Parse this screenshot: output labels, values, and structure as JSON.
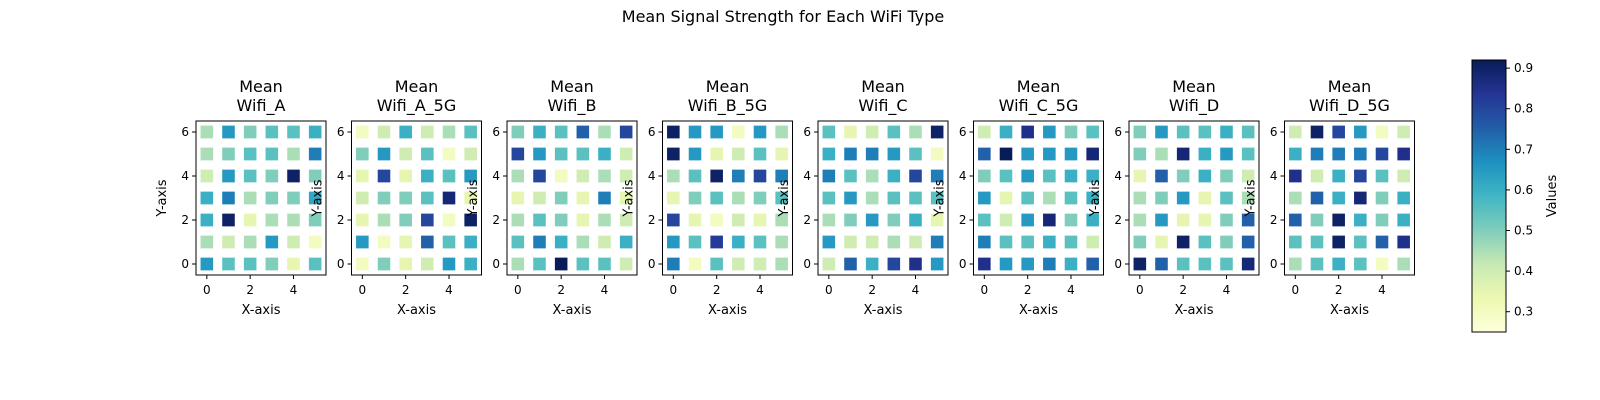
{
  "figure": {
    "suptitle": "Mean Signal Strength for Each WiFi Type",
    "colorbar_label": "Values",
    "colormap": "YlGnBu",
    "colormap_stops": [
      "#ffffd9",
      "#edf8b1",
      "#c7e9b4",
      "#7fcdbb",
      "#41b6c4",
      "#1d91c0",
      "#225ea8",
      "#253494",
      "#081d58"
    ]
  },
  "chart_data": [
    {
      "type": "heatmap",
      "title": "Mean\nWifi_A",
      "xlabel": "X-axis",
      "ylabel": "Y-axis",
      "x": [
        0,
        1,
        2,
        3,
        4,
        5
      ],
      "y": [
        0,
        1,
        2,
        3,
        4,
        5,
        6
      ],
      "xticks": [
        0,
        2,
        4
      ],
      "yticks": [
        0,
        2,
        4,
        6
      ],
      "zlim": [
        0.25,
        0.92
      ],
      "z": [
        [
          0.65,
          0.55,
          0.55,
          0.5,
          0.35,
          0.55
        ],
        [
          0.45,
          0.4,
          0.45,
          0.65,
          0.4,
          0.3
        ],
        [
          0.6,
          0.9,
          0.35,
          0.45,
          0.45,
          0.5
        ],
        [
          0.6,
          0.7,
          0.45,
          0.5,
          0.5,
          0.62
        ],
        [
          0.4,
          0.65,
          0.55,
          0.5,
          0.9,
          0.5
        ],
        [
          0.45,
          0.5,
          0.55,
          0.55,
          0.45,
          0.7
        ],
        [
          0.45,
          0.65,
          0.5,
          0.55,
          0.55,
          0.6
        ]
      ]
    },
    {
      "type": "heatmap",
      "title": "Mean\nWifi_A_5G",
      "xlabel": "X-axis",
      "ylabel": "Y-axis",
      "x": [
        0,
        1,
        2,
        3,
        4,
        5
      ],
      "y": [
        0,
        1,
        2,
        3,
        4,
        5,
        6
      ],
      "xticks": [
        0,
        2,
        4
      ],
      "yticks": [
        0,
        2,
        4,
        6
      ],
      "zlim": [
        0.25,
        0.92
      ],
      "z": [
        [
          0.3,
          0.5,
          0.35,
          0.4,
          0.65,
          0.6
        ],
        [
          0.65,
          0.3,
          0.35,
          0.75,
          0.55,
          0.6
        ],
        [
          0.35,
          0.45,
          0.5,
          0.8,
          0.3,
          0.9
        ],
        [
          0.4,
          0.5,
          0.5,
          0.55,
          0.88,
          0.35
        ],
        [
          0.35,
          0.8,
          0.35,
          0.6,
          0.55,
          0.65
        ],
        [
          0.5,
          0.65,
          0.4,
          0.55,
          0.3,
          0.4
        ],
        [
          0.3,
          0.4,
          0.6,
          0.4,
          0.45,
          0.55
        ]
      ]
    },
    {
      "type": "heatmap",
      "title": "Mean\nWifi_B",
      "xlabel": "X-axis",
      "ylabel": "Y-axis",
      "x": [
        0,
        1,
        2,
        3,
        4,
        5
      ],
      "y": [
        0,
        1,
        2,
        3,
        4,
        5,
        6
      ],
      "xticks": [
        0,
        2,
        4
      ],
      "yticks": [
        0,
        2,
        4,
        6
      ],
      "zlim": [
        0.25,
        0.92
      ],
      "z": [
        [
          0.45,
          0.55,
          0.92,
          0.55,
          0.55,
          0.4
        ],
        [
          0.55,
          0.7,
          0.6,
          0.45,
          0.4,
          0.6
        ],
        [
          0.45,
          0.55,
          0.5,
          0.35,
          0.45,
          0.4
        ],
        [
          0.35,
          0.4,
          0.5,
          0.35,
          0.7,
          0.35
        ],
        [
          0.45,
          0.8,
          0.3,
          0.4,
          0.45,
          0.4
        ],
        [
          0.8,
          0.65,
          0.55,
          0.55,
          0.6,
          0.4
        ],
        [
          0.5,
          0.6,
          0.55,
          0.75,
          0.45,
          0.8
        ]
      ]
    },
    {
      "type": "heatmap",
      "title": "Mean\nWifi_B_5G",
      "xlabel": "X-axis",
      "ylabel": "Y-axis",
      "x": [
        0,
        1,
        2,
        3,
        4,
        5
      ],
      "y": [
        0,
        1,
        2,
        3,
        4,
        5,
        6
      ],
      "xticks": [
        0,
        2,
        4
      ],
      "yticks": [
        0,
        2,
        4,
        6
      ],
      "zlim": [
        0.25,
        0.92
      ],
      "z": [
        [
          0.7,
          0.3,
          0.55,
          0.4,
          0.4,
          0.45
        ],
        [
          0.65,
          0.55,
          0.82,
          0.6,
          0.55,
          0.45
        ],
        [
          0.8,
          0.35,
          0.3,
          0.4,
          0.35,
          0.45
        ],
        [
          0.35,
          0.5,
          0.55,
          0.45,
          0.5,
          0.55
        ],
        [
          0.45,
          0.55,
          0.9,
          0.7,
          0.8,
          0.7
        ],
        [
          0.9,
          0.65,
          0.35,
          0.4,
          0.55,
          0.35
        ],
        [
          0.9,
          0.65,
          0.65,
          0.3,
          0.65,
          0.45
        ]
      ]
    },
    {
      "type": "heatmap",
      "title": "Mean\nWifi_C",
      "xlabel": "X-axis",
      "ylabel": "Y-axis",
      "x": [
        0,
        1,
        2,
        3,
        4,
        5
      ],
      "y": [
        0,
        1,
        2,
        3,
        4,
        5,
        6
      ],
      "xticks": [
        0,
        2,
        4
      ],
      "yticks": [
        0,
        2,
        4,
        6
      ],
      "zlim": [
        0.25,
        0.92
      ],
      "z": [
        [
          0.4,
          0.75,
          0.6,
          0.8,
          0.85,
          0.65
        ],
        [
          0.65,
          0.4,
          0.4,
          0.45,
          0.4,
          0.7
        ],
        [
          0.45,
          0.5,
          0.65,
          0.5,
          0.6,
          0.35
        ],
        [
          0.55,
          0.65,
          0.45,
          0.55,
          0.55,
          0.55
        ],
        [
          0.7,
          0.55,
          0.45,
          0.6,
          0.8,
          0.7
        ],
        [
          0.6,
          0.7,
          0.7,
          0.65,
          0.55,
          0.3
        ],
        [
          0.55,
          0.35,
          0.4,
          0.55,
          0.45,
          0.9
        ]
      ]
    },
    {
      "type": "heatmap",
      "title": "Mean\nWifi_C_5G",
      "xlabel": "X-axis",
      "ylabel": "Y-axis",
      "x": [
        0,
        1,
        2,
        3,
        4,
        5
      ],
      "y": [
        0,
        1,
        2,
        3,
        4,
        5,
        6
      ],
      "xticks": [
        0,
        2,
        4
      ],
      "yticks": [
        0,
        2,
        4,
        6
      ],
      "zlim": [
        0.25,
        0.92
      ],
      "z": [
        [
          0.85,
          0.65,
          0.65,
          0.7,
          0.6,
          0.75
        ],
        [
          0.7,
          0.55,
          0.55,
          0.6,
          0.55,
          0.4
        ],
        [
          0.55,
          0.4,
          0.65,
          0.88,
          0.5,
          0.6
        ],
        [
          0.65,
          0.35,
          0.55,
          0.45,
          0.55,
          0.6
        ],
        [
          0.5,
          0.55,
          0.65,
          0.55,
          0.6,
          0.6
        ],
        [
          0.75,
          0.92,
          0.65,
          0.65,
          0.65,
          0.88
        ],
        [
          0.4,
          0.6,
          0.85,
          0.65,
          0.5,
          0.55
        ]
      ]
    },
    {
      "type": "heatmap",
      "title": "Mean\nWifi_D",
      "xlabel": "X-axis",
      "ylabel": "Y-axis",
      "x": [
        0,
        1,
        2,
        3,
        4,
        5
      ],
      "y": [
        0,
        1,
        2,
        3,
        4,
        5,
        6
      ],
      "xticks": [
        0,
        2,
        4
      ],
      "yticks": [
        0,
        2,
        4,
        6
      ],
      "zlim": [
        0.25,
        0.92
      ],
      "z": [
        [
          0.9,
          0.75,
          0.55,
          0.55,
          0.55,
          0.88
        ],
        [
          0.5,
          0.35,
          0.9,
          0.55,
          0.5,
          0.75
        ],
        [
          0.45,
          0.65,
          0.35,
          0.35,
          0.5,
          0.75
        ],
        [
          0.45,
          0.5,
          0.65,
          0.35,
          0.55,
          0.45
        ],
        [
          0.35,
          0.75,
          0.5,
          0.6,
          0.5,
          0.4
        ],
        [
          0.5,
          0.45,
          0.88,
          0.6,
          0.65,
          0.55
        ],
        [
          0.5,
          0.65,
          0.55,
          0.55,
          0.6,
          0.55
        ]
      ]
    },
    {
      "type": "heatmap",
      "title": "Mean\nWifi_D_5G",
      "xlabel": "X-axis",
      "ylabel": "Y-axis",
      "x": [
        0,
        1,
        2,
        3,
        4,
        5
      ],
      "y": [
        0,
        1,
        2,
        3,
        4,
        5,
        6
      ],
      "xticks": [
        0,
        2,
        4
      ],
      "yticks": [
        0,
        2,
        4,
        6
      ],
      "zlim": [
        0.25,
        0.92
      ],
      "z": [
        [
          0.45,
          0.55,
          0.6,
          0.55,
          0.3,
          0.45
        ],
        [
          0.55,
          0.55,
          0.9,
          0.55,
          0.75,
          0.85
        ],
        [
          0.75,
          0.5,
          0.9,
          0.6,
          0.5,
          0.6
        ],
        [
          0.45,
          0.75,
          0.6,
          0.88,
          0.5,
          0.6
        ],
        [
          0.85,
          0.4,
          0.6,
          0.8,
          0.55,
          0.4
        ],
        [
          0.6,
          0.7,
          0.7,
          0.7,
          0.8,
          0.85
        ],
        [
          0.4,
          0.9,
          0.8,
          0.65,
          0.3,
          0.4
        ]
      ]
    }
  ]
}
